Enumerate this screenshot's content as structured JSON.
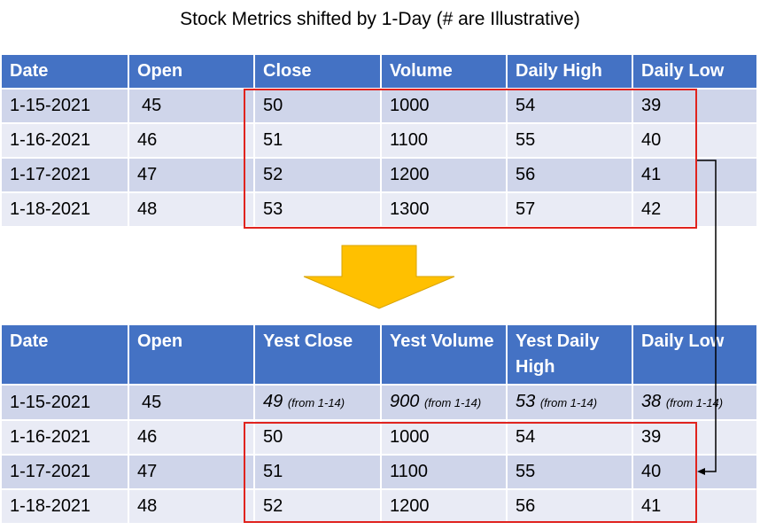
{
  "title": "Stock Metrics shifted by 1-Day (# are Illustrative)",
  "table_top": {
    "headers": [
      "Date",
      "Open",
      "Close",
      "Volume",
      "Daily High",
      "Daily Low"
    ],
    "rows": [
      [
        "1-15-2021",
        "45",
        "50",
        "1000",
        "54",
        "39"
      ],
      [
        "1-16-2021",
        "46",
        "51",
        "1100",
        "55",
        "40"
      ],
      [
        "1-17-2021",
        "47",
        "52",
        "1200",
        "56",
        "41"
      ],
      [
        "1-18-2021",
        "48",
        "53",
        "1300",
        "57",
        "42"
      ]
    ]
  },
  "table_bottom": {
    "headers": [
      "Date",
      "Open",
      "Yest Close",
      "Yest Volume",
      "Yest Daily High",
      "Daily Low"
    ],
    "first_row": {
      "date": "1-15-2021",
      "open": "45",
      "close": "49",
      "close_src": "(from 1-14)",
      "volume": "900",
      "volume_src": "(from 1-14)",
      "high": "53",
      "high_src": "(from 1-14)",
      "low": "38",
      "low_src": "(from 1-14)"
    },
    "rows": [
      [
        "1-16-2021",
        "46",
        "50",
        "1000",
        "54",
        "39"
      ],
      [
        "1-17-2021",
        "47",
        "51",
        "1100",
        "55",
        "40"
      ],
      [
        "1-18-2021",
        "48",
        "52",
        "1200",
        "56",
        "41"
      ]
    ]
  },
  "colors": {
    "header": "#4472c4",
    "row_odd": "#cfd5ea",
    "row_even": "#e9ebf5",
    "highlight_box": "#e0231e",
    "down_arrow": "#ffc000",
    "connector": "#000000"
  },
  "icons": {
    "shift_arrow": "down-arrow-icon",
    "connector": "elbow-arrow"
  }
}
